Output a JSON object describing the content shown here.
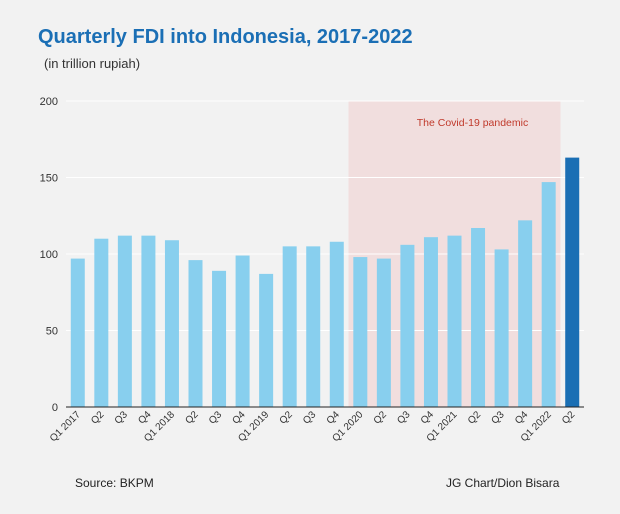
{
  "chart_data": {
    "type": "bar",
    "title": "Quarterly FDI into Indonesia, 2017-2022",
    "subtitle": "(in trillion rupiah)",
    "categories": [
      "Q1 2017",
      "Q2",
      "Q3",
      "Q4",
      "Q1 2018",
      "Q2",
      "Q3",
      "Q4",
      "Q1 2019",
      "Q2",
      "Q3",
      "Q4",
      "Q1 2020",
      "Q2",
      "Q3",
      "Q4",
      "Q1 2021",
      "Q2",
      "Q3",
      "Q4",
      "Q1 2022",
      "Q2"
    ],
    "values": [
      97,
      110,
      112,
      112,
      109,
      96,
      89,
      99,
      87,
      105,
      105,
      108,
      98,
      97,
      106,
      111,
      112,
      117,
      103,
      122,
      147,
      163
    ],
    "ylim": [
      0,
      200
    ],
    "yticks": [
      "0",
      "50",
      "100",
      "150",
      "200"
    ],
    "grid": true,
    "colors": {
      "bar": "#88cfee",
      "highlight": "#1a6fb4",
      "shade": "#f1dede",
      "annotation": "#c0392b",
      "title": "#1b6fb5"
    },
    "highlight_index": 21,
    "shaded_range": {
      "from_index": 12,
      "to_index": 20,
      "label": "The Covid-19 pandemic"
    }
  },
  "footer": {
    "source": "Source: BKPM",
    "credit": "JG Chart/Dion Bisara"
  }
}
